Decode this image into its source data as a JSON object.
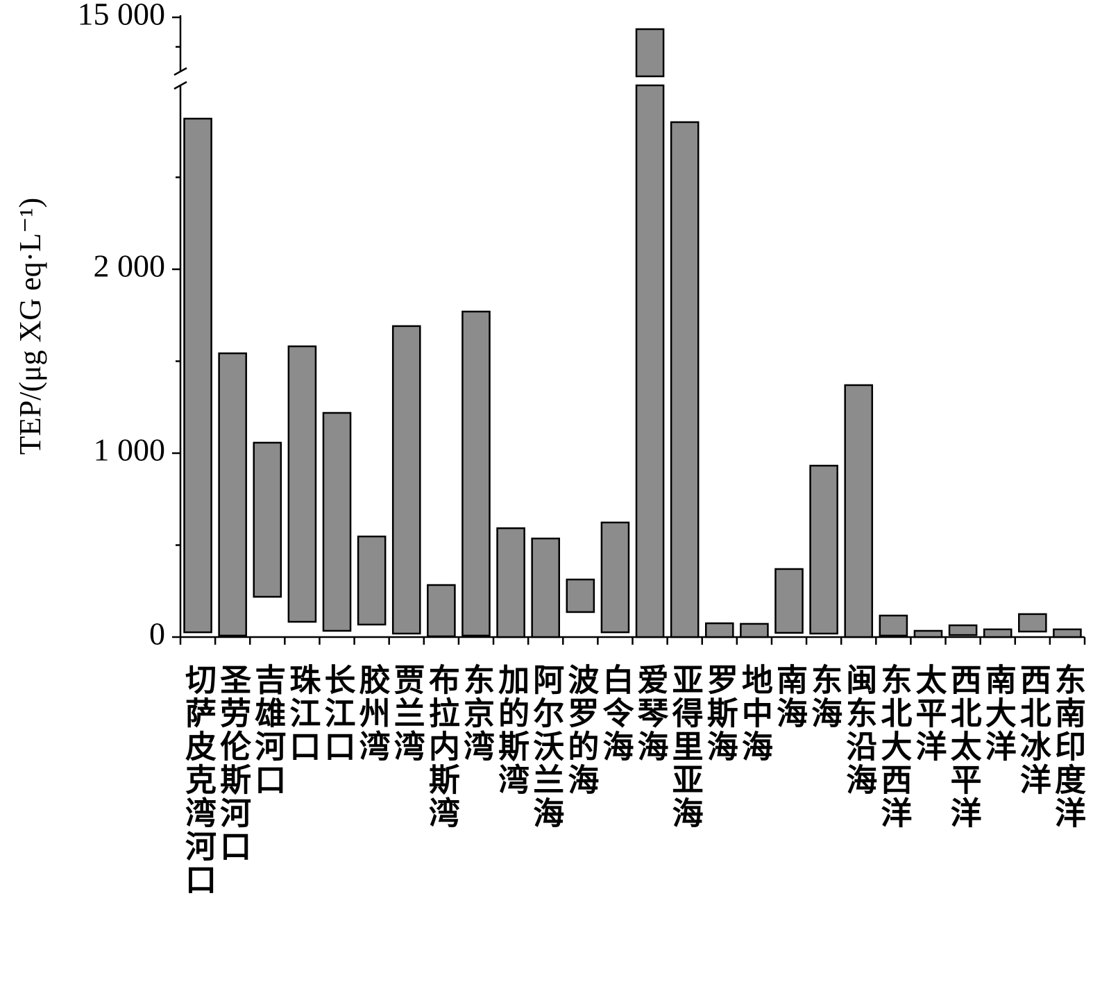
{
  "chart_data": {
    "type": "floating_bar",
    "y_label": "TEP/(μg XG eq·L⁻¹)",
    "categories": [
      "切萨皮克湾河口",
      "圣劳伦斯河口",
      "吉雄河口",
      "珠江口",
      "长江口",
      "胶州湾",
      "贾兰湾",
      "布拉内斯湾",
      "东京湾",
      "加的斯湾",
      "阿尔沃兰海",
      "波罗的海",
      "白令海",
      "爱琴海",
      "亚得里亚海",
      "罗斯海",
      "地中海",
      "南海",
      "东海",
      "闽东沿海",
      "东北大西洋",
      "太平洋",
      "西北太平洋",
      "南大洋",
      "西北冰洋",
      "东南印度洋"
    ],
    "low": [
      26,
      8,
      219,
      83,
      34,
      68,
      19,
      4,
      8,
      0,
      0,
      136,
      26,
      0,
      0,
      0,
      0,
      23,
      19,
      0,
      8,
      0,
      11,
      0,
      30,
      0
    ],
    "high": [
      2819,
      1543,
      1057,
      1581,
      1219,
      547,
      1691,
      283,
      1770,
      592,
      536,
      313,
      623,
      14800,
      2800,
      75,
      72,
      370,
      932,
      1370,
      117,
      34,
      64,
      42,
      125,
      42
    ],
    "color": "#8c8c8c",
    "ylim": [
      0,
      3000
    ],
    "yticks": [
      0,
      {
        "value": 1000,
        "label": "1 000"
      },
      {
        "value": 2000,
        "label": "2 000"
      }
    ],
    "yminor": [
      500,
      1500,
      2500
    ],
    "y_upper_lim": [
      14000,
      15000
    ],
    "y_upper_ticks": [
      {
        "value": 15000,
        "label": "15 000"
      }
    ],
    "y_upper_minor": [
      14500
    ]
  }
}
